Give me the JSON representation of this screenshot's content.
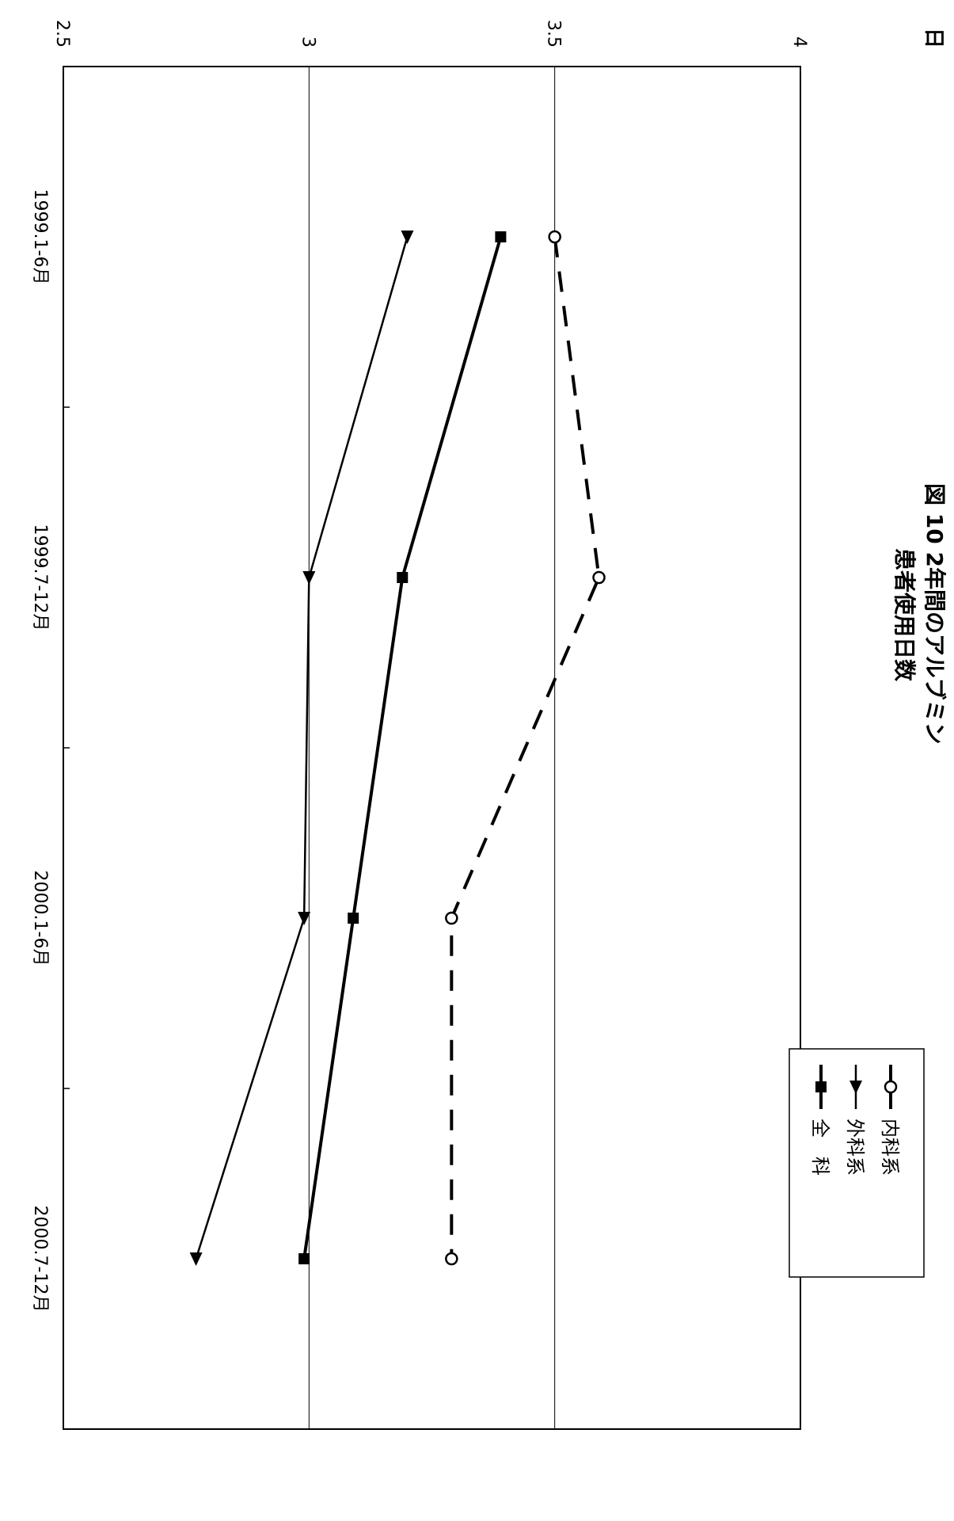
{
  "chart_data": {
    "type": "line",
    "title": "図 10 2年間のアルブミン",
    "subtitle": "患者使用日数",
    "ylabel": "日",
    "xlabel": "",
    "categories": [
      "1999.1-6月",
      "1999.7-12月",
      "2000.1-6月",
      "2000.7-12月"
    ],
    "y_ticks": [
      "2.5",
      "3",
      "3.5",
      "4"
    ],
    "ylim": [
      2.5,
      4
    ],
    "grid": true,
    "legend_position": "top-right",
    "series": [
      {
        "name": "内科系",
        "values": [
          3.5,
          3.59,
          3.29,
          3.29
        ],
        "marker": "circle-open",
        "line": "dashed"
      },
      {
        "name": "外科系",
        "values": [
          3.2,
          3.0,
          2.99,
          2.77
        ],
        "marker": "triangle",
        "line": "solid"
      },
      {
        "name": "全　科",
        "values": [
          3.39,
          3.19,
          3.09,
          2.99
        ],
        "marker": "square",
        "line": "solid-bold"
      }
    ]
  }
}
